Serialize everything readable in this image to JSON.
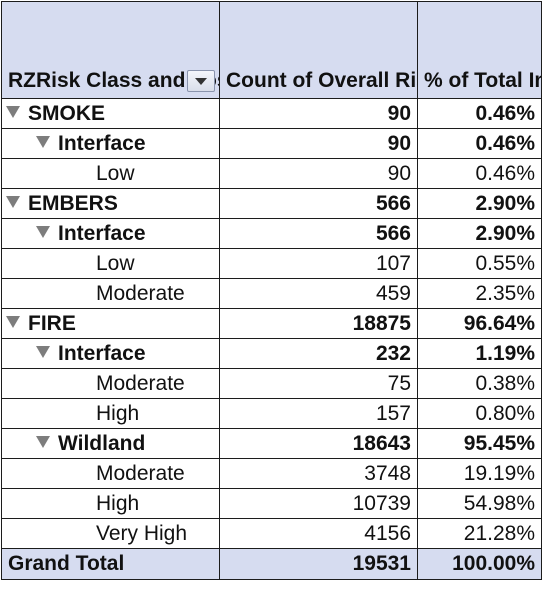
{
  "table": {
    "headers": {
      "label_col": "RZRisk Class and Loss Type",
      "count_col": "Count of Overall Risk Classification",
      "pct_col": "% of Total Impacted Structures"
    },
    "rows": [
      {
        "label": "SMOKE",
        "count": "90",
        "pct": "0.46%"
      },
      {
        "label": "Interface",
        "count": "90",
        "pct": "0.46%"
      },
      {
        "label": "Low",
        "count": "90",
        "pct": "0.46%"
      },
      {
        "label": "EMBERS",
        "count": "566",
        "pct": "2.90%"
      },
      {
        "label": "Interface",
        "count": "566",
        "pct": "2.90%"
      },
      {
        "label": "Low",
        "count": "107",
        "pct": "0.55%"
      },
      {
        "label": "Moderate",
        "count": "459",
        "pct": "2.35%"
      },
      {
        "label": "FIRE",
        "count": "18875",
        "pct": "96.64%"
      },
      {
        "label": "Interface",
        "count": "232",
        "pct": "1.19%"
      },
      {
        "label": "Moderate",
        "count": "75",
        "pct": "0.38%"
      },
      {
        "label": "High",
        "count": "157",
        "pct": "0.80%"
      },
      {
        "label": "Wildland",
        "count": "18643",
        "pct": "95.45%"
      },
      {
        "label": "Moderate",
        "count": "3748",
        "pct": "19.19%"
      },
      {
        "label": "High",
        "count": "10739",
        "pct": "54.98%"
      },
      {
        "label": "Very High",
        "count": "4156",
        "pct": "21.28%"
      }
    ],
    "grand_total": {
      "label": "Grand Total",
      "count": "19531",
      "pct": "100.00%"
    }
  },
  "colors": {
    "header_fill": "#d6dcf0",
    "border": "#1c1c1c",
    "expander": "#7d7d7d"
  }
}
